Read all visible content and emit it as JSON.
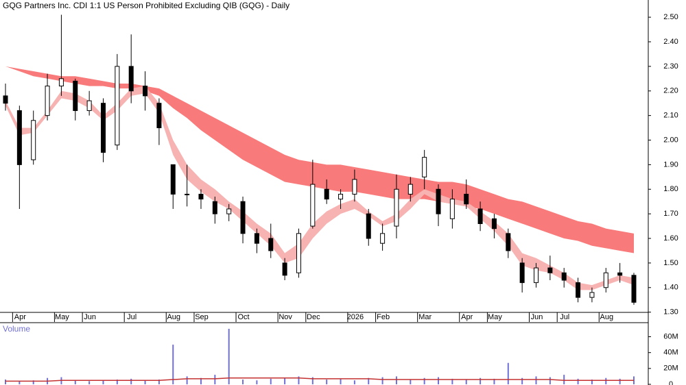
{
  "chart_data": [
    {
      "type": "candlestick",
      "title": "GQG Partners Inc. CDI 1:1 US Person Prohibited Excluding QIB (GQG) - Daily",
      "categories": [
        null,
        "Apr",
        null,
        null,
        "May",
        null,
        "Jun",
        null,
        null,
        "Jul",
        null,
        null,
        "Aug",
        null,
        "Sep",
        null,
        null,
        "Oct",
        null,
        null,
        "Nov",
        null,
        "Dec",
        null,
        null,
        "2026",
        null,
        "Feb",
        null,
        null,
        "Mar",
        null,
        null,
        "Apr",
        null,
        "May",
        null,
        null,
        "Jun",
        null,
        "Jul",
        null,
        null,
        "Aug",
        null,
        null
      ],
      "open": [
        2.18,
        2.12,
        1.92,
        2.1,
        2.22,
        2.24,
        2.12,
        2.15,
        1.98,
        2.3,
        2.22,
        2.15,
        1.9,
        1.78,
        1.78,
        1.75,
        1.7,
        1.75,
        1.62,
        1.6,
        1.5,
        1.46,
        1.65,
        1.8,
        1.76,
        1.78,
        1.7,
        1.58,
        1.65,
        1.78,
        1.85,
        1.8,
        1.68,
        1.78,
        1.72,
        1.68,
        1.62,
        1.5,
        1.42,
        1.48,
        1.46,
        1.42,
        1.36,
        1.4,
        1.46,
        1.45
      ],
      "high": [
        2.23,
        2.14,
        2.12,
        2.27,
        2.51,
        2.25,
        2.2,
        2.17,
        2.35,
        2.43,
        2.28,
        2.17,
        1.9,
        1.9,
        1.8,
        1.77,
        1.74,
        1.77,
        1.64,
        1.66,
        1.52,
        1.64,
        1.92,
        1.84,
        1.8,
        1.88,
        1.72,
        1.66,
        1.86,
        1.85,
        1.96,
        1.82,
        1.8,
        1.84,
        1.75,
        1.7,
        1.64,
        1.52,
        1.5,
        1.53,
        1.48,
        1.44,
        1.4,
        1.48,
        1.5,
        1.46
      ],
      "low": [
        2.12,
        1.72,
        1.9,
        2.08,
        2.18,
        2.08,
        2.1,
        1.91,
        1.96,
        2.15,
        2.12,
        1.98,
        1.72,
        1.73,
        1.72,
        1.66,
        1.67,
        1.58,
        1.54,
        1.52,
        1.43,
        1.44,
        1.64,
        1.74,
        1.72,
        1.75,
        1.57,
        1.55,
        1.6,
        1.75,
        1.8,
        1.65,
        1.64,
        1.72,
        1.63,
        1.6,
        1.52,
        1.38,
        1.4,
        1.43,
        1.4,
        1.34,
        1.34,
        1.38,
        1.42,
        1.33
      ],
      "close": [
        2.15,
        1.9,
        2.08,
        2.22,
        2.25,
        2.12,
        2.16,
        1.95,
        2.3,
        2.2,
        2.18,
        2.05,
        1.78,
        1.78,
        1.76,
        1.7,
        1.72,
        1.62,
        1.58,
        1.55,
        1.45,
        1.62,
        1.82,
        1.76,
        1.78,
        1.84,
        1.6,
        1.62,
        1.8,
        1.82,
        1.93,
        1.7,
        1.76,
        1.74,
        1.66,
        1.64,
        1.55,
        1.42,
        1.48,
        1.46,
        1.43,
        1.36,
        1.38,
        1.46,
        1.45,
        1.34
      ],
      "bands": [
        {
          "color": "#f87a7a",
          "upper": [
            2.3,
            2.29,
            2.28,
            2.27,
            2.26,
            2.26,
            2.25,
            2.24,
            2.23,
            2.23,
            2.22,
            2.21,
            2.18,
            2.15,
            2.12,
            2.09,
            2.06,
            2.03,
            2.0,
            1.97,
            1.94,
            1.92,
            1.91,
            1.9,
            1.9,
            1.89,
            1.88,
            1.87,
            1.86,
            1.85,
            1.84,
            1.83,
            1.83,
            1.82,
            1.8,
            1.78,
            1.76,
            1.75,
            1.73,
            1.71,
            1.69,
            1.67,
            1.66,
            1.64,
            1.63,
            1.62
          ],
          "lower": [
            2.3,
            2.28,
            2.26,
            2.25,
            2.24,
            2.23,
            2.22,
            2.22,
            2.21,
            2.21,
            2.2,
            2.18,
            2.13,
            2.09,
            2.04,
            2.0,
            1.96,
            1.92,
            1.89,
            1.86,
            1.83,
            1.82,
            1.81,
            1.8,
            1.79,
            1.79,
            1.78,
            1.77,
            1.76,
            1.76,
            1.76,
            1.75,
            1.74,
            1.73,
            1.72,
            1.7,
            1.68,
            1.66,
            1.64,
            1.62,
            1.6,
            1.59,
            1.57,
            1.56,
            1.55,
            1.54
          ]
        },
        {
          "color": "#f7b2b2",
          "upper": [
            2.16,
            2.05,
            2.05,
            2.12,
            2.2,
            2.19,
            2.16,
            2.1,
            2.15,
            2.21,
            2.22,
            2.15,
            2.0,
            1.9,
            1.84,
            1.8,
            1.75,
            1.71,
            1.66,
            1.62,
            1.54,
            1.58,
            1.66,
            1.71,
            1.74,
            1.76,
            1.71,
            1.67,
            1.7,
            1.76,
            1.8,
            1.78,
            1.76,
            1.75,
            1.71,
            1.67,
            1.62,
            1.54,
            1.52,
            1.49,
            1.46,
            1.42,
            1.41,
            1.43,
            1.45,
            1.44
          ],
          "lower": [
            2.14,
            2.02,
            2.03,
            2.1,
            2.17,
            2.16,
            2.13,
            2.08,
            2.12,
            2.18,
            2.19,
            2.11,
            1.94,
            1.84,
            1.79,
            1.75,
            1.72,
            1.67,
            1.62,
            1.57,
            1.5,
            1.52,
            1.6,
            1.66,
            1.7,
            1.72,
            1.69,
            1.65,
            1.67,
            1.72,
            1.78,
            1.75,
            1.74,
            1.73,
            1.68,
            1.63,
            1.57,
            1.49,
            1.47,
            1.46,
            1.43,
            1.39,
            1.39,
            1.41,
            1.43,
            1.41
          ]
        }
      ],
      "ylim": [
        1.26,
        2.57
      ],
      "yticks": [
        {
          "value": 1.3,
          "label": "1.30"
        },
        {
          "value": 1.4,
          "label": "1.40"
        },
        {
          "value": 1.5,
          "label": "1.50"
        },
        {
          "value": 1.6,
          "label": "1.60"
        },
        {
          "value": 1.7,
          "label": "1.70"
        },
        {
          "value": 1.8,
          "label": "1.80"
        },
        {
          "value": 1.9,
          "label": "1.90"
        },
        {
          "value": 2.0,
          "label": "2.00"
        },
        {
          "value": 2.1,
          "label": "2.10"
        },
        {
          "value": 2.2,
          "label": "2.20"
        },
        {
          "value": 2.3,
          "label": "2.30"
        },
        {
          "value": 2.4,
          "label": "2.40"
        },
        {
          "value": 2.5,
          "label": "2.50"
        }
      ]
    },
    {
      "type": "bar",
      "title": "Volume",
      "color": "#6f6fd6",
      "values": [
        6000000,
        4000000,
        5000000,
        8000000,
        9000000,
        5000000,
        4000000,
        5000000,
        6000000,
        7000000,
        5000000,
        6000000,
        50000000,
        10000000,
        8000000,
        12000000,
        70000000,
        6000000,
        5000000,
        7000000,
        8000000,
        10000000,
        9000000,
        6000000,
        7000000,
        5000000,
        8000000,
        9000000,
        10000000,
        6000000,
        8000000,
        9000000,
        7000000,
        6000000,
        8000000,
        7000000,
        27000000,
        8000000,
        10000000,
        9000000,
        12000000,
        7000000,
        6000000,
        8000000,
        7000000,
        10000000
      ],
      "average": {
        "color": "#c43030",
        "values": [
          4000000,
          4000000,
          4000000,
          4000000,
          5000000,
          5000000,
          5000000,
          5000000,
          5000000,
          5000000,
          5000000,
          5000000,
          6000000,
          7000000,
          7000000,
          7000000,
          8000000,
          8000000,
          8000000,
          8000000,
          8000000,
          8000000,
          7000000,
          7000000,
          7000000,
          7000000,
          7000000,
          6000000,
          6000000,
          6000000,
          6000000,
          6000000,
          6000000,
          6000000,
          6000000,
          6000000,
          6000000,
          6000000,
          6000000,
          6000000,
          5000000,
          5000000,
          5000000,
          5000000,
          5000000,
          5000000
        ]
      },
      "ylim": [
        0,
        76000000
      ],
      "yticks": [
        0,
        {
          "value": 20000000,
          "label": "20M"
        },
        {
          "value": 40000000,
          "label": "40M"
        },
        {
          "value": 60000000,
          "label": "60M"
        }
      ]
    }
  ]
}
